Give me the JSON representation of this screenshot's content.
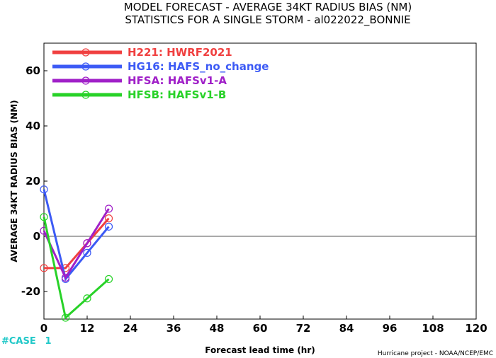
{
  "chart_data": {
    "type": "line",
    "title": "MODEL FORECAST - AVERAGE 34KT RADIUS BIAS (NM)",
    "subtitle": "STATISTICS FOR A SINGLE STORM - al022022_BONNIE",
    "xlabel": "Forecast lead time (hr)",
    "ylabel": "AVERAGE 34KT RADIUS BIAS (NM)",
    "xlim": [
      0,
      120
    ],
    "ylim": [
      -30,
      70
    ],
    "x_ticks": [
      0,
      12,
      24,
      36,
      48,
      60,
      72,
      84,
      96,
      108,
      120
    ],
    "y_ticks": [
      -20,
      0,
      20,
      40,
      60
    ],
    "zero_line": true,
    "legend_position": "top-left",
    "series": [
      {
        "code": "H221",
        "name": "HWRF2021",
        "color": "#f04040",
        "x": [
          0,
          6,
          12,
          18
        ],
        "values": [
          -11.5,
          -11.5,
          -2.5,
          6.5
        ]
      },
      {
        "code": "HG16",
        "name": "HAFS_no_change",
        "color": "#3c5af5",
        "x": [
          0,
          6,
          12,
          18
        ],
        "values": [
          17,
          -15.5,
          -6,
          3.5
        ]
      },
      {
        "code": "HFSA",
        "name": "HAFSv1-A",
        "color": "#a020c8",
        "x": [
          0,
          6,
          12,
          18
        ],
        "values": [
          2,
          -15,
          -2.5,
          10
        ]
      },
      {
        "code": "HFSB",
        "name": "HAFSv1-B",
        "color": "#28d228",
        "x": [
          0,
          6,
          12,
          18
        ],
        "values": [
          7,
          -29.5,
          -22.5,
          -15.5
        ]
      }
    ],
    "cases": {
      "label": "#CASE",
      "x": [
        0,
        6,
        12,
        18
      ],
      "values": [
        "1",
        "",
        "",
        ""
      ],
      "color": "#20c8c8"
    }
  },
  "footer": {
    "credit": "Hurricane project - NOAA/NCEP/EMC"
  }
}
